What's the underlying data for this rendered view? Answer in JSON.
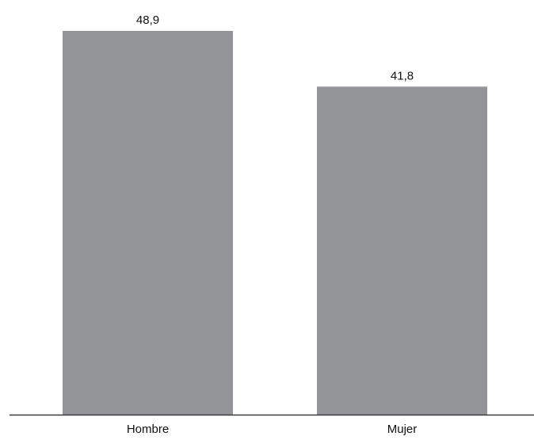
{
  "chart_data": {
    "type": "bar",
    "categories": [
      "Hombre",
      "Mujer"
    ],
    "values": [
      48.9,
      41.8
    ],
    "data_labels": [
      "48,9",
      "41,8"
    ],
    "title": "",
    "xlabel": "",
    "ylabel": "",
    "ylim": [
      0,
      48.9
    ],
    "grid": false,
    "legend": "none",
    "colors": {
      "bar": "#939598",
      "axis": "#3a3a3a",
      "text": "#111111"
    }
  }
}
